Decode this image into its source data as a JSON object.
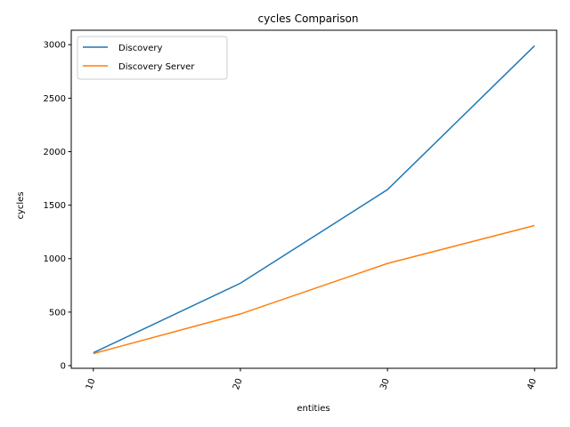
{
  "chart_data": {
    "type": "line",
    "title": "cycles Comparison",
    "xlabel": "entities",
    "ylabel": "cycles",
    "x": [
      10,
      20,
      30,
      40
    ],
    "xlim": [
      8.5,
      41.5
    ],
    "ylim": [
      -25,
      3135
    ],
    "yticks": [
      0,
      500,
      1000,
      1500,
      2000,
      2500,
      3000
    ],
    "xticks": [
      10,
      20,
      30,
      40
    ],
    "x_tick_rotation": 70,
    "grid": false,
    "legend_position": "top-left",
    "series": [
      {
        "name": "Discovery",
        "color": "#1f77b4",
        "values": [
          120,
          770,
          1645,
          2990
        ]
      },
      {
        "name": "Discovery Server",
        "color": "#ff7f0e",
        "values": [
          112,
          483,
          955,
          1310
        ]
      }
    ]
  }
}
